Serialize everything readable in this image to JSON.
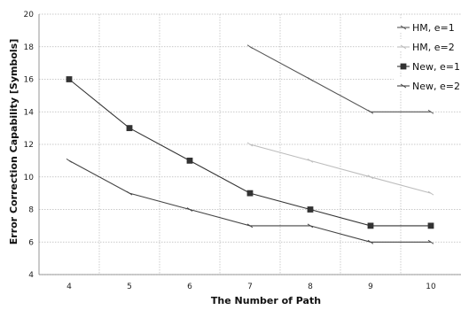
{
  "chart_data": {
    "type": "line",
    "title": "",
    "xlabel": "The Number of Path",
    "ylabel": "Error Correction Capability [Symbols]",
    "x": [
      4,
      5,
      6,
      7,
      8,
      9,
      10
    ],
    "xticks": [
      "4",
      "5",
      "6",
      "7",
      "8",
      "9",
      "10"
    ],
    "ylim": [
      4,
      20
    ],
    "yticks": [
      "4",
      "6",
      "8",
      "10",
      "12",
      "14",
      "16",
      "18",
      "20"
    ],
    "grid": true,
    "legend_position": "top-right",
    "series": [
      {
        "name": "HM, e=1",
        "color": "#555555",
        "marker": "tick",
        "values": [
          null,
          null,
          null,
          18,
          16,
          14,
          14
        ]
      },
      {
        "name": "HM, e=2",
        "color": "#bdbdbd",
        "marker": "tick",
        "values": [
          null,
          null,
          null,
          12,
          11,
          10,
          9
        ]
      },
      {
        "name": "New, e=1",
        "color": "#333333",
        "marker": "square",
        "values": [
          16,
          13,
          11,
          9,
          8,
          7,
          7
        ]
      },
      {
        "name": "New, e=2",
        "color": "#444444",
        "marker": "tick",
        "values": [
          11,
          9,
          8,
          7,
          7,
          6,
          6
        ]
      }
    ]
  }
}
